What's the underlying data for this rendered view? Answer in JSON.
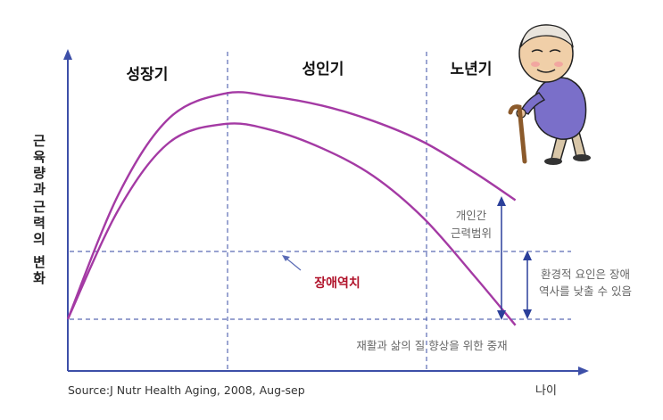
{
  "labels": {
    "phase_growth": "성장기",
    "phase_adult": "성인기",
    "phase_elderly": "노년기",
    "y_axis": [
      "근육량과",
      "근력의 변화"
    ],
    "individual_range_1": "개인간",
    "individual_range_2": "근력범위",
    "environment_note_1": "환경적 요인은 장애",
    "environment_note_2": "역사를 낮출 수 있음",
    "disability_threshold": "장애역치",
    "intervention": "재활과 삶의 질 향상을 위한 중재",
    "source": "Source:J Nutr Health Aging, 2008, Aug-sep",
    "x_axis": "나이"
  },
  "chart_data": {
    "type": "line",
    "title": "",
    "xlabel": "나이",
    "ylabel": "근육량과 근력의 변화",
    "xlim": [
      0,
      100
    ],
    "ylim": [
      0,
      100
    ],
    "phases": [
      "성장기",
      "성인기",
      "노년기"
    ],
    "series": [
      {
        "x": [
          0,
          10,
          20,
          31,
          40,
          50,
          60,
          70,
          80,
          88
        ],
        "values": [
          17,
          58,
          83,
          91,
          90,
          87,
          82,
          75,
          65,
          56
        ]
      },
      {
        "x": [
          0,
          10,
          20,
          31,
          40,
          50,
          60,
          70,
          80,
          88
        ],
        "values": [
          17,
          53,
          75,
          81,
          79,
          73,
          64,
          50,
          31,
          15
        ]
      }
    ],
    "annotations": [
      "장애역치",
      "개인간 근력범위",
      "환경적 요인은 장애 역사를 낮출 수 있음",
      "재활과 삶의 질 향상을 위한 중재"
    ]
  },
  "colors": {
    "axis": "#3d4fa8",
    "curve": "#a43aa4",
    "threshold_text": "#b0122a"
  }
}
